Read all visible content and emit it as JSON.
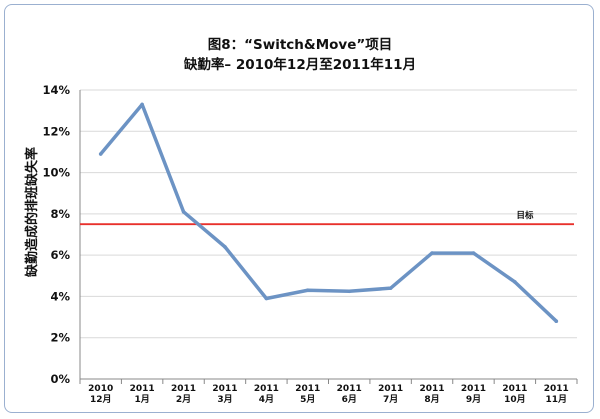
{
  "chart_data": {
    "type": "line",
    "title": [
      "图8：“Switch&Move”项目",
      "缺勤率– 2010年12月至2011年11月"
    ],
    "xlabel": "",
    "ylabel": "缺勤造成的排班缺失率",
    "ylim": [
      0,
      14
    ],
    "yticks": [
      0,
      2,
      4,
      6,
      8,
      10,
      12,
      14
    ],
    "ytick_suffix": "%",
    "grid": true,
    "categories": [
      {
        "year": "2010",
        "month": "12月"
      },
      {
        "year": "2011",
        "month": "1月"
      },
      {
        "year": "2011",
        "month": "2月"
      },
      {
        "year": "2011",
        "month": "3月"
      },
      {
        "year": "2011",
        "month": "4月"
      },
      {
        "year": "2011",
        "month": "5月"
      },
      {
        "year": "2011",
        "month": "6月"
      },
      {
        "year": "2011",
        "month": "7月"
      },
      {
        "year": "2011",
        "month": "8月"
      },
      {
        "year": "2011",
        "month": "9月"
      },
      {
        "year": "2011",
        "month": "10月"
      },
      {
        "year": "2011",
        "month": "11月"
      }
    ],
    "series": [
      {
        "values": [
          10.9,
          13.3,
          8.1,
          6.4,
          3.9,
          4.3,
          4.25,
          4.4,
          6.1,
          6.1,
          4.7,
          2.8
        ],
        "color": "#6c93c4"
      }
    ],
    "target": {
      "label": "目标",
      "value": 7.5,
      "color": "#e8302c"
    },
    "colors": {
      "grid": "#d9d9d9",
      "axis": "#888888",
      "frame": "#9bb0d0"
    }
  }
}
